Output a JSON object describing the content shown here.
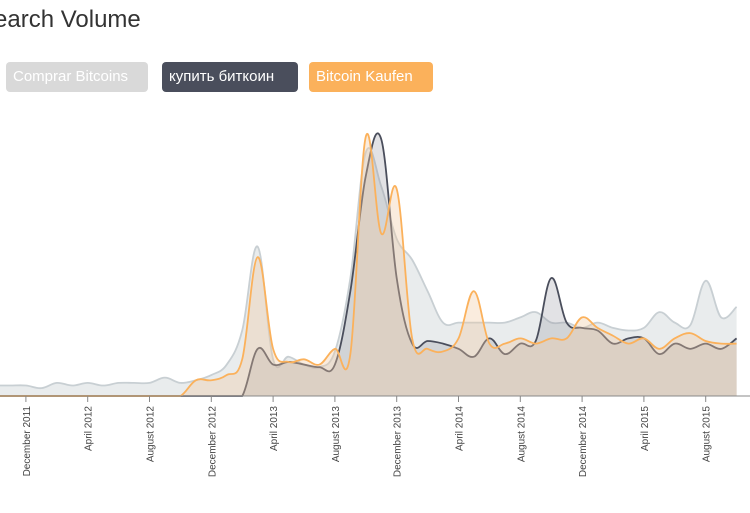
{
  "title": "earch Volume",
  "legend": {
    "items": [
      {
        "label": "Comprar Bitcoins",
        "color": "#d9d9d9"
      },
      {
        "label": "купить биткоин",
        "color": "#4a4e5c"
      },
      {
        "label": "Bitcoin Kaufen",
        "color": "#fbb15b"
      }
    ]
  },
  "chart_data": {
    "type": "area",
    "title": "earch Volume",
    "xlabel": "",
    "ylabel": "",
    "x_range": [
      "2011-10",
      "2015-10"
    ],
    "ylim": [
      0,
      100
    ],
    "x_tick_labels": [
      "December 2011",
      "April 2012",
      "August 2012",
      "December 2012",
      "April 2013",
      "August 2013",
      "December 2013",
      "April 2014",
      "August 2014",
      "December 2014",
      "April 2015",
      "August 2015"
    ],
    "x": [
      "2011-10",
      "2011-11",
      "2011-12",
      "2012-01",
      "2012-02",
      "2012-03",
      "2012-04",
      "2012-05",
      "2012-06",
      "2012-07",
      "2012-08",
      "2012-09",
      "2012-10",
      "2012-11",
      "2012-12",
      "2013-01",
      "2013-02",
      "2013-03",
      "2013-04",
      "2013-05",
      "2013-06",
      "2013-07",
      "2013-08",
      "2013-09",
      "2013-10",
      "2013-11",
      "2013-12",
      "2014-01",
      "2014-02",
      "2014-03",
      "2014-04",
      "2014-05",
      "2014-06",
      "2014-07",
      "2014-08",
      "2014-09",
      "2014-10",
      "2014-11",
      "2014-12",
      "2015-01",
      "2015-02",
      "2015-03",
      "2015-04",
      "2015-05",
      "2015-06",
      "2015-07",
      "2015-08",
      "2015-09",
      "2015-10"
    ],
    "series": [
      {
        "name": "Comprar Bitcoins",
        "color": "#cfd4d6",
        "values": [
          4,
          4,
          4,
          3,
          5,
          4,
          5,
          4,
          5,
          5,
          5,
          7,
          5,
          6,
          8,
          12,
          25,
          57,
          14,
          15,
          12,
          11,
          17,
          45,
          93,
          80,
          60,
          52,
          40,
          28,
          28,
          28,
          28,
          28,
          30,
          32,
          28,
          28,
          26,
          28,
          26,
          25,
          26,
          32,
          28,
          27,
          44,
          30,
          34
        ]
      },
      {
        "name": "купить биткоин",
        "color": "#4a4e5c",
        "values": [
          0,
          0,
          0,
          0,
          0,
          0,
          0,
          0,
          0,
          0,
          0,
          0,
          0,
          0,
          0,
          0,
          0,
          18,
          12,
          13,
          12,
          11,
          12,
          40,
          84,
          98,
          45,
          20,
          21,
          20,
          18,
          15,
          22,
          16,
          20,
          21,
          45,
          28,
          26,
          25,
          20,
          22,
          22,
          16,
          20,
          18,
          20,
          18,
          22
        ]
      },
      {
        "name": "Bitcoin Kaufen",
        "color": "#fbb15b",
        "values": [
          0,
          0,
          0,
          0,
          0,
          0,
          0,
          0,
          0,
          0,
          0,
          0,
          0,
          6,
          6,
          8,
          14,
          53,
          18,
          13,
          14,
          12,
          18,
          16,
          99,
          62,
          79,
          22,
          18,
          17,
          22,
          40,
          20,
          20,
          22,
          20,
          22,
          22,
          30,
          26,
          23,
          20,
          22,
          18,
          22,
          24,
          21,
          20,
          20
        ]
      }
    ]
  }
}
